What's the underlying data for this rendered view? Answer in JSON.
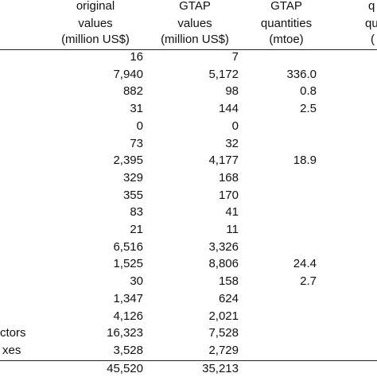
{
  "header": {
    "columns": [
      {
        "lines": [
          "original",
          "values",
          "(million US$)"
        ]
      },
      {
        "lines": [
          "GTAP",
          "values",
          "(million US$)"
        ]
      },
      {
        "lines": [
          "GTAP",
          "quantities",
          "(mtoe)"
        ]
      },
      {
        "lines": [
          "q",
          "qu",
          "("
        ]
      }
    ]
  },
  "table": {
    "rows": [
      {
        "original": "16",
        "gtap": "7"
      },
      {
        "original": "7,940",
        "gtap": "5,172",
        "quantities": "336.0"
      },
      {
        "original": "882",
        "gtap": "98",
        "quantities": "0.8"
      },
      {
        "original": "31",
        "gtap": "144",
        "quantities": "2.5"
      },
      {
        "original": "0",
        "gtap": "0"
      },
      {
        "original": "73",
        "gtap": "32"
      },
      {
        "original": "2,395",
        "gtap": "4,177",
        "quantities": "18.9"
      },
      {
        "original": "329",
        "gtap": "168"
      },
      {
        "original": "355",
        "gtap": "170"
      },
      {
        "original": "83",
        "gtap": "41"
      },
      {
        "original": "21",
        "gtap": "11"
      },
      {
        "original": "6,516",
        "gtap": "3,326"
      },
      {
        "original": "1,525",
        "gtap": "8,806",
        "quantities": "24.4"
      },
      {
        "original": "30",
        "gtap": "158",
        "quantities": "2.7"
      },
      {
        "original": "1,347",
        "gtap": "624"
      },
      {
        "original": "4,126",
        "gtap": "2,021"
      },
      {
        "label": "ctors",
        "original": "16,323",
        "gtap": "7,528"
      },
      {
        "label": "xes",
        "original": "3,528",
        "gtap": "2,729"
      },
      {
        "original": "45,520",
        "gtap": "35,213"
      }
    ]
  }
}
